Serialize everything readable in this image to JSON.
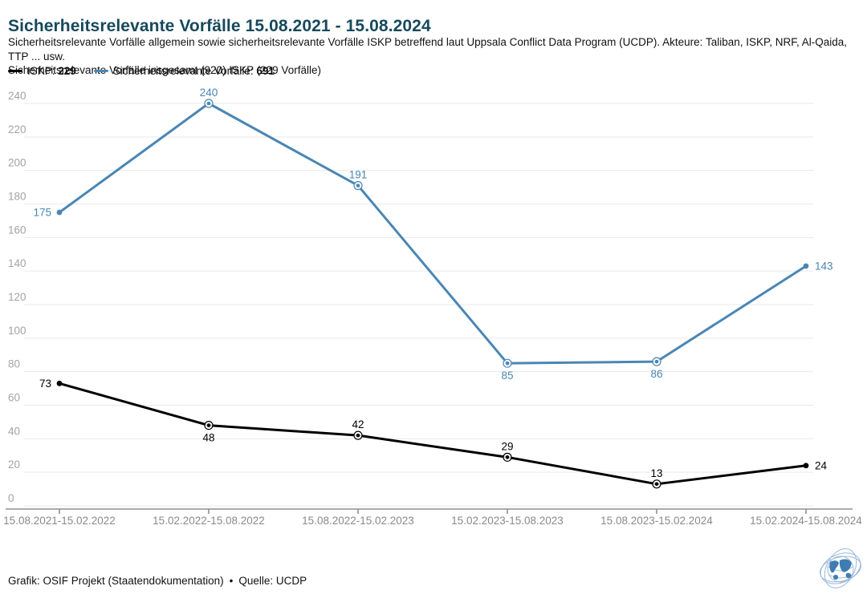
{
  "header": {
    "title": "Sicherheitsrelevante Vorfälle 15.08.2021 - 15.08.2024",
    "subtitle_line1": "Sicherheitsrelevante Vorfälle allgemein sowie sicherheitsrelevante Vorfälle ISKP betreffend laut Uppsala Conflict Data Program (UCDP). Akteure: Taliban, ISKP, NRF, Al-Qaida, TTP ... usw.",
    "subtitle_line2": "Sicherheitsrelevante Vorfälle insgesamt (920) ISKP (229 Vorfälle)",
    "title_color": "#17495c"
  },
  "legend": {
    "items": [
      {
        "label": "ISKP: ",
        "value": "229",
        "color": "#000000"
      },
      {
        "label": "Sicherheitsrelevante Vorfälle: ",
        "value": "691",
        "color": "#4a86b4"
      }
    ]
  },
  "chart_data": {
    "type": "line",
    "categories": [
      "15.08.2021-15.02.2022",
      "15.02.2022-15.08.2022",
      "15.08.2022-15.02.2023",
      "15.02.2023-15.08.2023",
      "15.08.2023-15.02.2024",
      "15.02.2024-15.08.2024"
    ],
    "series": [
      {
        "name": "ISKP",
        "values": [
          73,
          48,
          42,
          29,
          13,
          24
        ],
        "color": "#000000",
        "label_positions": [
          "left",
          "bottom",
          "top",
          "top",
          "top",
          "right"
        ]
      },
      {
        "name": "Sicherheitsrelevante Vorfälle",
        "values": [
          175,
          240,
          191,
          85,
          86,
          143
        ],
        "color": "#4a86b4",
        "label_positions": [
          "left",
          "top",
          "top",
          "bottom",
          "bottom",
          "right"
        ]
      }
    ],
    "ylim": [
      0,
      240
    ],
    "yticks": [
      0,
      20,
      40,
      60,
      80,
      100,
      120,
      140,
      160,
      180,
      200,
      220,
      240
    ],
    "grid": "horizontal",
    "legend_position": "top"
  },
  "footer": {
    "grafik": "Grafik: OSIF Projekt (Staatendokumentation)",
    "separator": "•",
    "quelle": "Quelle: UCDP"
  }
}
